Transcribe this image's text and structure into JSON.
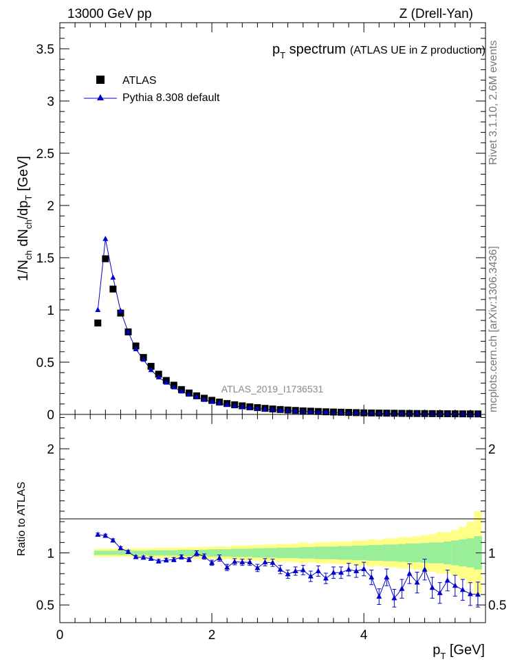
{
  "header": {
    "energy_label": "13000 GeV pp",
    "process_label": "Z (Drell-Yan)"
  },
  "side_labels": {
    "rivet": "Rivet 3.1.10, 2.6M events",
    "mcplots": "mcplots.cern.ch [arXiv:1306.3436]"
  },
  "watermark": "ATLAS_2019_I1736531",
  "chart_data": [
    {
      "type": "scatter",
      "title": "p_T spectrum",
      "title_main": "p",
      "title_sub": "T",
      "title_rest": " spectrum",
      "title_note": "(ATLAS UE in Z production)",
      "ylabel": "1/N_ch dN_ch/dp_T [GeV]",
      "ylim": [
        0,
        3.75
      ],
      "xlim": [
        0,
        5.6
      ],
      "yticks": [
        {
          "v": 0,
          "label": "0"
        },
        {
          "v": 0.5,
          "label": "0.5"
        },
        {
          "v": 1,
          "label": "1"
        },
        {
          "v": 1.5,
          "label": "1.5"
        },
        {
          "v": 2,
          "label": "2"
        },
        {
          "v": 2.5,
          "label": "2.5"
        },
        {
          "v": 3,
          "label": "3"
        },
        {
          "v": 3.5,
          "label": "3.5"
        }
      ],
      "legend": {
        "position": "top-left"
      },
      "x": [
        0.5,
        0.6,
        0.7,
        0.8,
        0.9,
        1.0,
        1.1,
        1.2,
        1.3,
        1.4,
        1.5,
        1.6,
        1.7,
        1.8,
        1.9,
        2.0,
        2.1,
        2.2,
        2.3,
        2.4,
        2.5,
        2.6,
        2.7,
        2.8,
        2.9,
        3.0,
        3.1,
        3.2,
        3.3,
        3.4,
        3.5,
        3.6,
        3.7,
        3.8,
        3.9,
        4.0,
        4.1,
        4.2,
        4.3,
        4.4,
        4.5,
        4.6,
        4.7,
        4.8,
        4.9,
        5.0,
        5.1,
        5.2,
        5.3,
        5.4,
        5.5
      ],
      "series": [
        {
          "name": "ATLAS",
          "marker": "square",
          "color": "#000000",
          "values": [
            0.875,
            1.49,
            1.2,
            0.97,
            0.79,
            0.655,
            0.545,
            0.46,
            0.385,
            0.325,
            0.28,
            0.238,
            0.205,
            0.178,
            0.155,
            0.135,
            0.118,
            0.104,
            0.092,
            0.082,
            0.073,
            0.065,
            0.058,
            0.052,
            0.047,
            0.042,
            0.038,
            0.034,
            0.031,
            0.028,
            0.025,
            0.023,
            0.021,
            0.019,
            0.017,
            0.015,
            0.014,
            0.013,
            0.012,
            0.011,
            0.01,
            0.009,
            0.0085,
            0.008,
            0.0075,
            0.007,
            0.0065,
            0.006,
            0.0055,
            0.005,
            0.0048
          ]
        },
        {
          "name": "Pythia 8.308 default",
          "marker": "triangle",
          "color": "#0000cc",
          "values": [
            1.0,
            1.68,
            1.31,
            0.99,
            0.79,
            0.625,
            0.525,
            0.425,
            0.355,
            0.305,
            0.26,
            0.22,
            0.19,
            0.165,
            0.14,
            0.12,
            0.105,
            0.092,
            0.08,
            0.071,
            0.063,
            0.056,
            0.05,
            0.045,
            0.04,
            0.036,
            0.032,
            0.029,
            0.026,
            0.023,
            0.021,
            0.019,
            0.017,
            0.015,
            0.014,
            0.013,
            0.011,
            0.01,
            0.009,
            0.0085,
            0.008,
            0.0075,
            0.007,
            0.0065,
            0.006,
            0.0055,
            0.005,
            0.0048,
            0.0045,
            0.0042,
            0.004
          ]
        }
      ]
    },
    {
      "type": "scatter",
      "ylabel": "Ratio to ATLAS",
      "xlabel": "p_T [GeV]",
      "xlabel_main": "p",
      "xlabel_sub": "T",
      "xlabel_rest": " [GeV]",
      "ylim": [
        0.33,
        2.33
      ],
      "xlim": [
        0,
        5.6
      ],
      "xticks": [
        {
          "v": 0,
          "label": "0"
        },
        {
          "v": 2,
          "label": "2"
        },
        {
          "v": 4,
          "label": "4"
        }
      ],
      "yticks": [
        {
          "v": 0.5,
          "label": "0.5"
        },
        {
          "v": 1,
          "label": "1"
        },
        {
          "v": 2,
          "label": "2"
        }
      ],
      "band_colors": {
        "inner": "#99ee99",
        "outer": "#ffff88"
      },
      "x": [
        0.5,
        0.6,
        0.7,
        0.8,
        0.9,
        1.0,
        1.1,
        1.2,
        1.3,
        1.4,
        1.5,
        1.6,
        1.7,
        1.8,
        1.9,
        2.0,
        2.1,
        2.2,
        2.3,
        2.4,
        2.5,
        2.6,
        2.7,
        2.8,
        2.9,
        3.0,
        3.1,
        3.2,
        3.3,
        3.4,
        3.5,
        3.6,
        3.7,
        3.8,
        3.9,
        4.0,
        4.1,
        4.2,
        4.3,
        4.4,
        4.5,
        4.6,
        4.7,
        4.8,
        4.9,
        5.0,
        5.1,
        5.2,
        5.3,
        5.4,
        5.5
      ],
      "band_inner": [
        0.02,
        0.02,
        0.02,
        0.02,
        0.02,
        0.02,
        0.02,
        0.025,
        0.025,
        0.025,
        0.025,
        0.03,
        0.03,
        0.03,
        0.03,
        0.035,
        0.035,
        0.035,
        0.04,
        0.04,
        0.04,
        0.045,
        0.045,
        0.045,
        0.05,
        0.05,
        0.05,
        0.055,
        0.055,
        0.06,
        0.06,
        0.06,
        0.065,
        0.065,
        0.07,
        0.07,
        0.075,
        0.075,
        0.08,
        0.08,
        0.085,
        0.09,
        0.09,
        0.095,
        0.1,
        0.1,
        0.11,
        0.12,
        0.13,
        0.14,
        0.16
      ],
      "band_outer": [
        0.04,
        0.04,
        0.04,
        0.04,
        0.04,
        0.045,
        0.045,
        0.045,
        0.05,
        0.05,
        0.05,
        0.05,
        0.055,
        0.055,
        0.06,
        0.06,
        0.065,
        0.06,
        0.07,
        0.07,
        0.075,
        0.075,
        0.08,
        0.08,
        0.085,
        0.085,
        0.09,
        0.1,
        0.09,
        0.1,
        0.1,
        0.105,
        0.11,
        0.11,
        0.12,
        0.12,
        0.13,
        0.125,
        0.14,
        0.14,
        0.15,
        0.15,
        0.16,
        0.17,
        0.18,
        0.2,
        0.2,
        0.22,
        0.25,
        0.3,
        0.4
      ],
      "series": [
        {
          "name": "Pythia 8.308 default",
          "marker": "triangle",
          "color": "#0000cc",
          "values": [
            1.175,
            1.165,
            1.12,
            1.045,
            1.01,
            0.96,
            0.955,
            0.945,
            0.92,
            0.93,
            0.935,
            0.96,
            0.935,
            0.995,
            0.965,
            0.905,
            0.95,
            0.86,
            0.915,
            0.91,
            0.91,
            0.855,
            0.91,
            0.905,
            0.84,
            0.795,
            0.825,
            0.835,
            0.775,
            0.825,
            0.755,
            0.81,
            0.81,
            0.84,
            0.825,
            0.845,
            0.765,
            0.58,
            0.765,
            0.565,
            0.655,
            0.8,
            0.715,
            0.84,
            0.665,
            0.615,
            0.735,
            0.685,
            0.645,
            0.605,
            0.6
          ],
          "errors": [
            0.015,
            0.015,
            0.015,
            0.015,
            0.015,
            0.015,
            0.015,
            0.018,
            0.018,
            0.018,
            0.02,
            0.02,
            0.02,
            0.025,
            0.025,
            0.025,
            0.03,
            0.03,
            0.03,
            0.03,
            0.03,
            0.035,
            0.035,
            0.035,
            0.04,
            0.04,
            0.04,
            0.045,
            0.05,
            0.05,
            0.05,
            0.055,
            0.055,
            0.06,
            0.06,
            0.065,
            0.07,
            0.075,
            0.08,
            0.085,
            0.09,
            0.095,
            0.1,
            0.1,
            0.1,
            0.1,
            0.1,
            0.1,
            0.1,
            0.11,
            0.12
          ]
        }
      ]
    }
  ]
}
